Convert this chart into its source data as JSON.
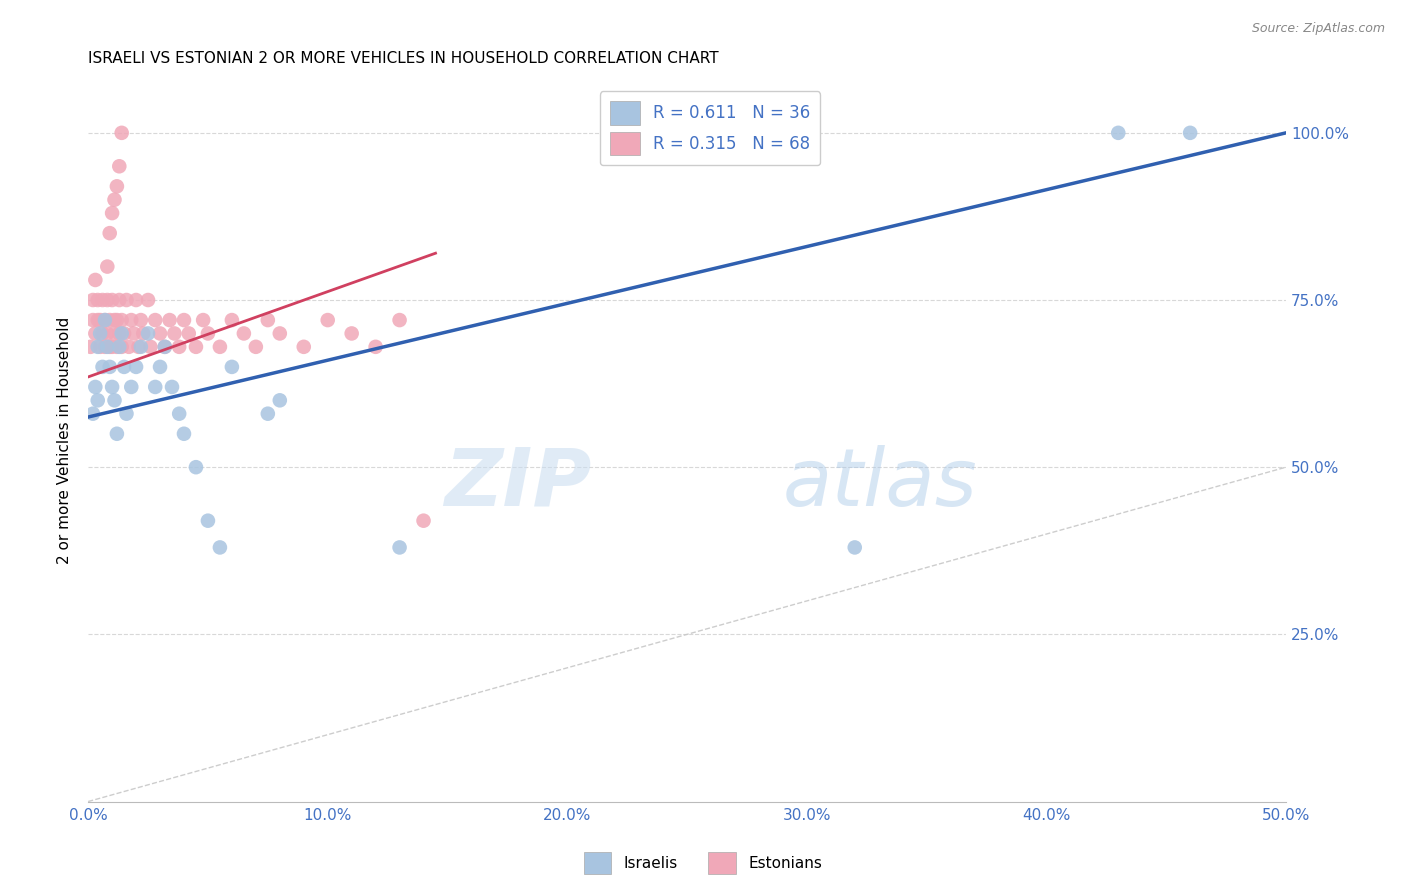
{
  "title": "ISRAELI VS ESTONIAN 2 OR MORE VEHICLES IN HOUSEHOLD CORRELATION CHART",
  "source": "Source: ZipAtlas.com",
  "ylabel": "2 or more Vehicles in Household",
  "xlabel_ticks": [
    "0.0%",
    "10.0%",
    "20.0%",
    "30.0%",
    "40.0%",
    "50.0%"
  ],
  "ylabel_ticks": [
    "25.0%",
    "50.0%",
    "75.0%",
    "100.0%"
  ],
  "xlim": [
    0.0,
    0.5
  ],
  "ylim": [
    0.0,
    1.08
  ],
  "watermark_zip": "ZIP",
  "watermark_atlas": "atlas",
  "legend_items": [
    {
      "label_r": "R = 0.611",
      "label_n": "N = 36",
      "color": "#aec6e8"
    },
    {
      "label_r": "R = 0.315",
      "label_n": "N = 68",
      "color": "#f4b8c4"
    }
  ],
  "legend_bottom": [
    "Israelis",
    "Estonians"
  ],
  "israelis_x": [
    0.002,
    0.003,
    0.004,
    0.004,
    0.005,
    0.006,
    0.007,
    0.008,
    0.009,
    0.01,
    0.011,
    0.012,
    0.013,
    0.014,
    0.015,
    0.016,
    0.018,
    0.02,
    0.022,
    0.025,
    0.028,
    0.03,
    0.032,
    0.035,
    0.038,
    0.04,
    0.045,
    0.05,
    0.055,
    0.06,
    0.075,
    0.08,
    0.13,
    0.32,
    0.43,
    0.46
  ],
  "israelis_y": [
    0.58,
    0.62,
    0.6,
    0.68,
    0.7,
    0.65,
    0.72,
    0.68,
    0.65,
    0.62,
    0.6,
    0.55,
    0.68,
    0.7,
    0.65,
    0.58,
    0.62,
    0.65,
    0.68,
    0.7,
    0.62,
    0.65,
    0.68,
    0.62,
    0.58,
    0.55,
    0.5,
    0.42,
    0.38,
    0.65,
    0.58,
    0.6,
    0.38,
    0.38,
    1.0,
    1.0
  ],
  "estonians_x": [
    0.001,
    0.002,
    0.002,
    0.003,
    0.003,
    0.004,
    0.004,
    0.005,
    0.005,
    0.006,
    0.006,
    0.007,
    0.007,
    0.008,
    0.008,
    0.009,
    0.009,
    0.01,
    0.01,
    0.011,
    0.011,
    0.012,
    0.012,
    0.013,
    0.013,
    0.014,
    0.014,
    0.015,
    0.016,
    0.017,
    0.018,
    0.019,
    0.02,
    0.021,
    0.022,
    0.023,
    0.025,
    0.026,
    0.028,
    0.03,
    0.032,
    0.034,
    0.036,
    0.038,
    0.04,
    0.042,
    0.045,
    0.048,
    0.05,
    0.055,
    0.06,
    0.065,
    0.07,
    0.075,
    0.08,
    0.09,
    0.1,
    0.11,
    0.12,
    0.13,
    0.008,
    0.009,
    0.01,
    0.011,
    0.012,
    0.013,
    0.014,
    0.14
  ],
  "estonians_y": [
    0.68,
    0.72,
    0.75,
    0.7,
    0.78,
    0.72,
    0.75,
    0.68,
    0.72,
    0.7,
    0.75,
    0.68,
    0.72,
    0.7,
    0.75,
    0.68,
    0.72,
    0.68,
    0.75,
    0.7,
    0.72,
    0.68,
    0.72,
    0.7,
    0.75,
    0.68,
    0.72,
    0.7,
    0.75,
    0.68,
    0.72,
    0.7,
    0.75,
    0.68,
    0.72,
    0.7,
    0.75,
    0.68,
    0.72,
    0.7,
    0.68,
    0.72,
    0.7,
    0.68,
    0.72,
    0.7,
    0.68,
    0.72,
    0.7,
    0.68,
    0.72,
    0.7,
    0.68,
    0.72,
    0.7,
    0.68,
    0.72,
    0.7,
    0.68,
    0.72,
    0.8,
    0.85,
    0.88,
    0.9,
    0.92,
    0.95,
    1.0,
    0.42
  ],
  "israeli_color": "#a8c4e0",
  "estonian_color": "#f0a8b8",
  "israeli_line_color": "#3060b0",
  "estonian_line_color": "#d04060",
  "diagonal_color": "#c8c8c8",
  "tick_color": "#4472c4",
  "grid_color": "#d8d8d8",
  "isr_line_x0": 0.0,
  "isr_line_x1": 0.5,
  "isr_line_y0": 0.575,
  "isr_line_y1": 1.0,
  "est_line_x0": 0.0,
  "est_line_x1": 0.145,
  "est_line_y0": 0.635,
  "est_line_y1": 0.82
}
